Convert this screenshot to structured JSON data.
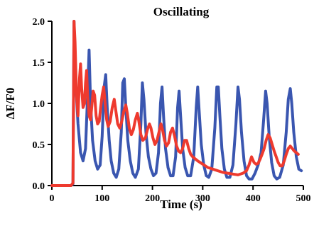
{
  "chart_data": {
    "type": "line",
    "title": "Oscillating",
    "xlabel": "Time (s)",
    "ylabel": "ΔF/F0",
    "xlim": [
      0,
      500
    ],
    "ylim": [
      0,
      2.0
    ],
    "x_ticks": [
      0,
      100,
      200,
      300,
      400,
      500
    ],
    "y_ticks": [
      "0.0",
      "0.5",
      "1.0",
      "1.5",
      "2.0"
    ],
    "grid": false,
    "legend": "none",
    "series": [
      {
        "color": "#3a56b0",
        "points": [
          [
            0,
            0.0
          ],
          [
            38,
            0.0
          ],
          [
            42,
            0.02
          ],
          [
            44,
            2.0
          ],
          [
            47,
            1.3
          ],
          [
            52,
            0.75
          ],
          [
            57,
            0.4
          ],
          [
            62,
            0.3
          ],
          [
            67,
            0.45
          ],
          [
            71,
            1.1
          ],
          [
            74,
            1.65
          ],
          [
            77,
            1.0
          ],
          [
            81,
            0.55
          ],
          [
            86,
            0.3
          ],
          [
            91,
            0.2
          ],
          [
            96,
            0.25
          ],
          [
            100,
            0.6
          ],
          [
            104,
            1.2
          ],
          [
            107,
            1.35
          ],
          [
            110,
            0.95
          ],
          [
            114,
            0.55
          ],
          [
            118,
            0.3
          ],
          [
            123,
            0.15
          ],
          [
            128,
            0.1
          ],
          [
            133,
            0.2
          ],
          [
            138,
            0.65
          ],
          [
            141,
            1.25
          ],
          [
            144,
            1.3
          ],
          [
            147,
            0.95
          ],
          [
            151,
            0.55
          ],
          [
            156,
            0.3
          ],
          [
            161,
            0.15
          ],
          [
            166,
            0.1
          ],
          [
            172,
            0.2
          ],
          [
            177,
            0.75
          ],
          [
            180,
            1.25
          ],
          [
            183,
            1.05
          ],
          [
            187,
            0.65
          ],
          [
            192,
            0.35
          ],
          [
            197,
            0.2
          ],
          [
            202,
            0.12
          ],
          [
            207,
            0.15
          ],
          [
            212,
            0.4
          ],
          [
            216,
            1.0
          ],
          [
            219,
            1.2
          ],
          [
            222,
            0.85
          ],
          [
            226,
            0.45
          ],
          [
            231,
            0.22
          ],
          [
            236,
            0.12
          ],
          [
            241,
            0.12
          ],
          [
            246,
            0.35
          ],
          [
            250,
            0.95
          ],
          [
            253,
            1.15
          ],
          [
            256,
            0.85
          ],
          [
            260,
            0.45
          ],
          [
            265,
            0.22
          ],
          [
            270,
            0.12
          ],
          [
            276,
            0.12
          ],
          [
            282,
            0.35
          ],
          [
            287,
            0.95
          ],
          [
            290,
            1.2
          ],
          [
            293,
            0.9
          ],
          [
            297,
            0.5
          ],
          [
            302,
            0.25
          ],
          [
            307,
            0.12
          ],
          [
            312,
            0.1
          ],
          [
            318,
            0.2
          ],
          [
            324,
            0.7
          ],
          [
            328,
            1.2
          ],
          [
            331,
            1.2
          ],
          [
            334,
            0.85
          ],
          [
            338,
            0.45
          ],
          [
            343,
            0.2
          ],
          [
            348,
            0.1
          ],
          [
            354,
            0.1
          ],
          [
            360,
            0.25
          ],
          [
            366,
            0.75
          ],
          [
            370,
            1.2
          ],
          [
            373,
            1.05
          ],
          [
            377,
            0.65
          ],
          [
            382,
            0.3
          ],
          [
            387,
            0.12
          ],
          [
            392,
            0.08
          ],
          [
            398,
            0.08
          ],
          [
            404,
            0.15
          ],
          [
            410,
            0.25
          ],
          [
            416,
            0.4
          ],
          [
            421,
            0.8
          ],
          [
            425,
            1.15
          ],
          [
            428,
            1.0
          ],
          [
            432,
            0.6
          ],
          [
            437,
            0.28
          ],
          [
            442,
            0.12
          ],
          [
            447,
            0.08
          ],
          [
            453,
            0.1
          ],
          [
            460,
            0.25
          ],
          [
            466,
            0.65
          ],
          [
            470,
            1.05
          ],
          [
            474,
            1.18
          ],
          [
            477,
            1.0
          ],
          [
            481,
            0.65
          ],
          [
            486,
            0.35
          ],
          [
            491,
            0.2
          ],
          [
            496,
            0.18
          ]
        ]
      },
      {
        "color": "#ee3a2e",
        "points": [
          [
            0,
            0.0
          ],
          [
            38,
            0.0
          ],
          [
            42,
            0.03
          ],
          [
            44,
            2.0
          ],
          [
            46,
            1.75
          ],
          [
            49,
            1.1
          ],
          [
            52,
            0.85
          ],
          [
            55,
            1.3
          ],
          [
            57,
            1.48
          ],
          [
            59,
            1.2
          ],
          [
            62,
            0.95
          ],
          [
            65,
            1.0
          ],
          [
            67,
            1.25
          ],
          [
            69,
            1.4
          ],
          [
            71,
            1.1
          ],
          [
            74,
            0.85
          ],
          [
            77,
            0.8
          ],
          [
            80,
            1.0
          ],
          [
            82,
            1.15
          ],
          [
            85,
            1.1
          ],
          [
            88,
            0.85
          ],
          [
            91,
            0.75
          ],
          [
            94,
            0.78
          ],
          [
            97,
            0.95
          ],
          [
            100,
            1.1
          ],
          [
            103,
            1.2
          ],
          [
            106,
            1.0
          ],
          [
            109,
            0.8
          ],
          [
            112,
            0.72
          ],
          [
            116,
            0.78
          ],
          [
            120,
            0.95
          ],
          [
            124,
            1.05
          ],
          [
            127,
            0.92
          ],
          [
            131,
            0.75
          ],
          [
            135,
            0.7
          ],
          [
            139,
            0.78
          ],
          [
            143,
            0.9
          ],
          [
            147,
            0.98
          ],
          [
            150,
            0.88
          ],
          [
            154,
            0.7
          ],
          [
            158,
            0.62
          ],
          [
            162,
            0.68
          ],
          [
            166,
            0.8
          ],
          [
            170,
            0.88
          ],
          [
            173,
            0.78
          ],
          [
            177,
            0.62
          ],
          [
            181,
            0.55
          ],
          [
            186,
            0.58
          ],
          [
            190,
            0.68
          ],
          [
            194,
            0.75
          ],
          [
            197,
            0.7
          ],
          [
            201,
            0.58
          ],
          [
            205,
            0.5
          ],
          [
            209,
            0.55
          ],
          [
            213,
            0.65
          ],
          [
            217,
            0.75
          ],
          [
            220,
            0.68
          ],
          [
            224,
            0.55
          ],
          [
            228,
            0.48
          ],
          [
            232,
            0.52
          ],
          [
            236,
            0.65
          ],
          [
            240,
            0.7
          ],
          [
            244,
            0.6
          ],
          [
            248,
            0.48
          ],
          [
            252,
            0.42
          ],
          [
            256,
            0.4
          ],
          [
            260,
            0.45
          ],
          [
            264,
            0.55
          ],
          [
            268,
            0.55
          ],
          [
            272,
            0.45
          ],
          [
            276,
            0.38
          ],
          [
            280,
            0.35
          ],
          [
            290,
            0.3
          ],
          [
            300,
            0.26
          ],
          [
            310,
            0.22
          ],
          [
            320,
            0.2
          ],
          [
            330,
            0.18
          ],
          [
            340,
            0.16
          ],
          [
            350,
            0.15
          ],
          [
            360,
            0.14
          ],
          [
            370,
            0.13
          ],
          [
            380,
            0.15
          ],
          [
            387,
            0.18
          ],
          [
            392,
            0.25
          ],
          [
            397,
            0.35
          ],
          [
            402,
            0.28
          ],
          [
            406,
            0.26
          ],
          [
            410,
            0.27
          ],
          [
            414,
            0.32
          ],
          [
            418,
            0.38
          ],
          [
            422,
            0.45
          ],
          [
            426,
            0.55
          ],
          [
            430,
            0.62
          ],
          [
            434,
            0.58
          ],
          [
            438,
            0.5
          ],
          [
            442,
            0.42
          ],
          [
            446,
            0.35
          ],
          [
            450,
            0.28
          ],
          [
            454,
            0.24
          ],
          [
            458,
            0.24
          ],
          [
            462,
            0.3
          ],
          [
            466,
            0.38
          ],
          [
            470,
            0.45
          ],
          [
            474,
            0.48
          ],
          [
            478,
            0.45
          ],
          [
            482,
            0.42
          ],
          [
            486,
            0.4
          ],
          [
            490,
            0.38
          ]
        ]
      }
    ]
  }
}
